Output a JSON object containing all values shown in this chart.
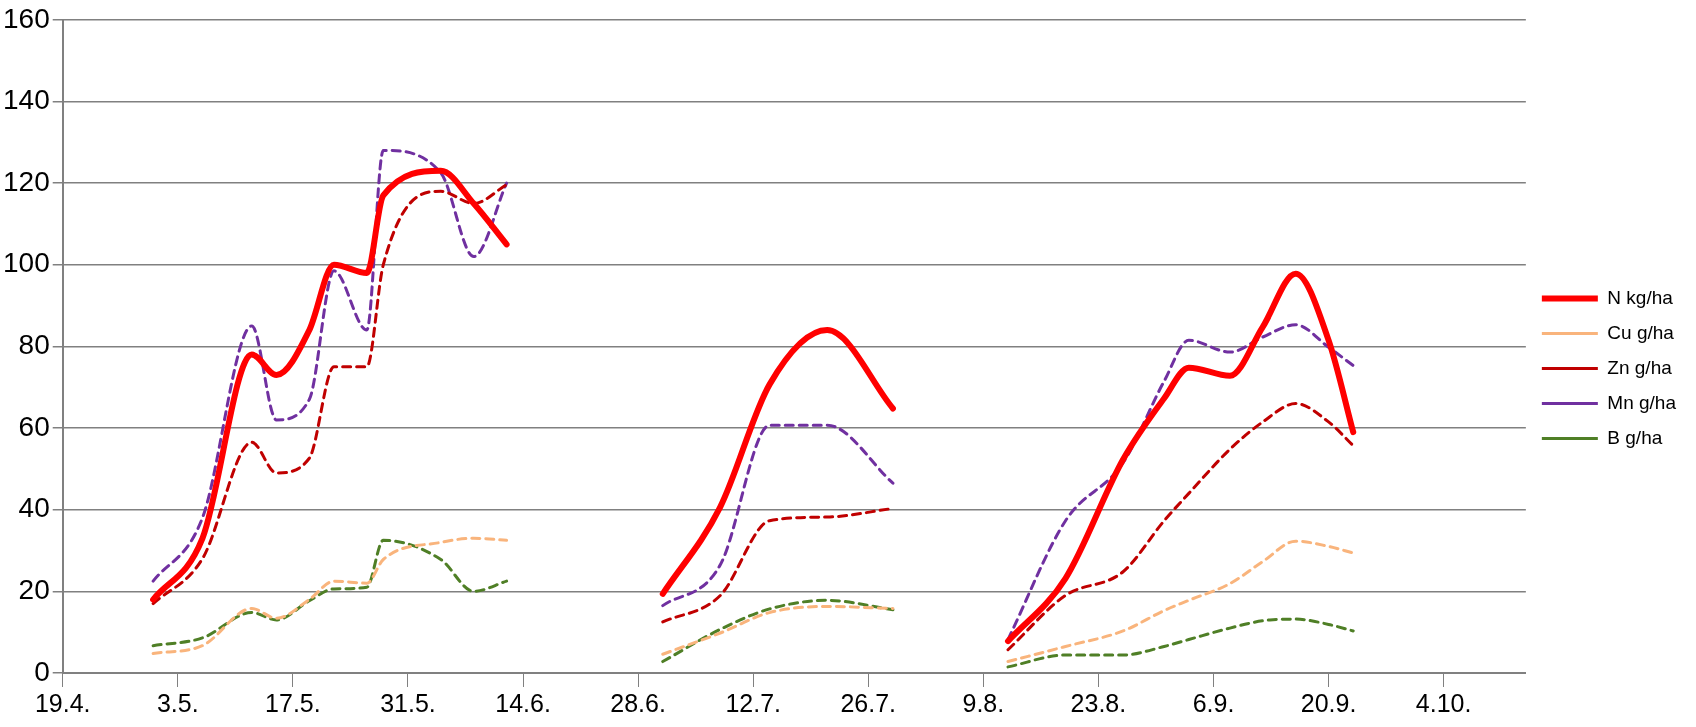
{
  "chart_data": {
    "type": "line",
    "x": [
      "--04-30",
      "--05-06",
      "--05-12",
      "--05-15",
      "--05-19",
      "--05-22",
      "--05-26",
      "--05-28",
      "--06-04",
      "--06-08",
      "--06-12",
      "--06-20",
      "--07-01",
      "--07-08",
      "--07-14",
      "--07-21",
      "--07-29",
      "--08-05",
      "--08-12",
      "--08-19",
      "--08-26",
      "--08-31",
      "--09-03",
      "--09-08",
      "--09-12",
      "--09-16",
      "--09-20",
      "--09-23"
    ],
    "series": [
      {
        "name": "N kg/ha",
        "color": "#ff0000",
        "line_style": "solid",
        "values": [
          18,
          33,
          78,
          73,
          84,
          100,
          98,
          117,
          123,
          115,
          105,
          null,
          19.4,
          40.7,
          70.7,
          84,
          64.8,
          null,
          7.8,
          23.2,
          52.3,
          67.3,
          74.8,
          72.8,
          84.8,
          97.8,
          81.5,
          59
        ]
      },
      {
        "name": "Cu g/ha",
        "color": "#f9b47c",
        "line_style": "dashed",
        "values": [
          4.8,
          6.7,
          15.8,
          13.4,
          18,
          22.5,
          22,
          27.8,
          32,
          33,
          32.5,
          null,
          4.6,
          9.8,
          14.8,
          16.3,
          15.8,
          null,
          2.8,
          6.5,
          10.3,
          15.3,
          17.8,
          21.9,
          27.3,
          32.3,
          31,
          29.4
        ]
      },
      {
        "name": "Zn g/ha",
        "color": "#c00000",
        "line_style": "dashed",
        "values": [
          17,
          28,
          56.5,
          49,
          52.6,
          75,
          75,
          100,
          118,
          115,
          119.6,
          null,
          12.5,
          19,
          37.3,
          38.2,
          40.3,
          null,
          5.7,
          19,
          24.8,
          37.3,
          44,
          54.8,
          61.5,
          66,
          61.5,
          55.7
        ]
      },
      {
        "name": "Mn g/ha",
        "color": "#7030a0",
        "line_style": "dashed",
        "values": [
          22.5,
          38,
          85,
          62,
          67,
          98.5,
          84,
          128,
          122.5,
          102,
          120,
          null,
          16.5,
          26.5,
          60.7,
          60.7,
          46.5,
          null,
          8.2,
          37.3,
          51.5,
          71.5,
          81.5,
          78.6,
          82.3,
          85.3,
          79.8,
          75.3
        ]
      },
      {
        "name": "B g/ha",
        "color": "#4f7f26",
        "line_style": "dashed",
        "values": [
          6.7,
          8.6,
          14.8,
          13,
          17.7,
          20.6,
          21,
          32.5,
          27.8,
          20,
          22.5,
          null,
          2.8,
          10.7,
          15.7,
          17.8,
          15.5,
          null,
          1.5,
          4.4,
          4.4,
          6.5,
          8.2,
          11,
          12.8,
          13.2,
          11.9,
          10.3
        ]
      }
    ],
    "xlim": [
      "--04-19",
      "--10-14"
    ],
    "xticks": [
      {
        "value": "--04-19",
        "label": "19.4."
      },
      {
        "value": "--05-03",
        "label": "3.5."
      },
      {
        "value": "--05-17",
        "label": "17.5."
      },
      {
        "value": "--05-31",
        "label": "31.5."
      },
      {
        "value": "--06-14",
        "label": "14.6."
      },
      {
        "value": "--06-28",
        "label": "28.6."
      },
      {
        "value": "--07-12",
        "label": "12.7."
      },
      {
        "value": "--07-26",
        "label": "26.7."
      },
      {
        "value": "--08-09",
        "label": "9.8."
      },
      {
        "value": "--08-23",
        "label": "23.8."
      },
      {
        "value": "--09-06",
        "label": "6.9."
      },
      {
        "value": "--09-20",
        "label": "20.9."
      },
      {
        "value": "--10-04",
        "label": "4.10."
      }
    ],
    "ylim": [
      0,
      160
    ],
    "yticks": [
      0,
      20,
      40,
      60,
      80,
      100,
      120,
      140,
      160
    ],
    "grid": "y",
    "legend": "right",
    "marker": "none"
  }
}
